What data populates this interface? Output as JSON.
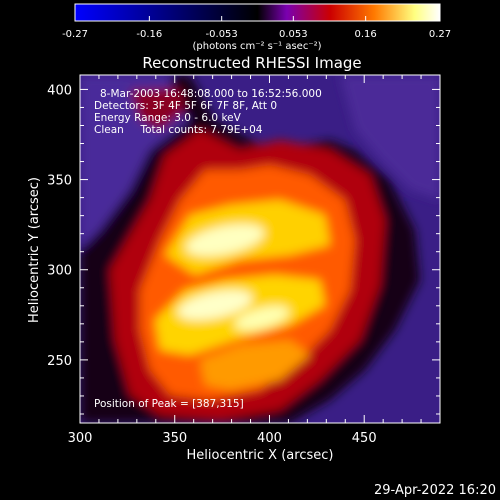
{
  "colorbar": {
    "ticks": [
      "-0.27",
      "-0.16",
      "-0.053",
      "0.053",
      "0.16",
      "0.27"
    ],
    "units_label": "(photons cm⁻² s⁻¹ asec⁻²)",
    "range": [
      -0.27,
      0.27
    ],
    "stops": [
      "#0000ff",
      "#000000",
      "#7a00b0",
      "#cc0000",
      "#ff7a00",
      "#ffff80",
      "#ffffff"
    ]
  },
  "chart_data": {
    "type": "heatmap",
    "title": "Reconstructed RHESSI Image",
    "xlabel": "Heliocentric X (arcsec)",
    "ylabel": "Heliocentric Y (arcsec)",
    "xlim": [
      300,
      490
    ],
    "ylim": [
      215,
      408
    ],
    "xticks": [
      300,
      350,
      400,
      450
    ],
    "yticks": [
      250,
      300,
      350,
      400
    ],
    "annotations": [
      "8-Mar-2003 16:48:08.000 to 16:52:56.000",
      "Detectors: 3F 4F 5F 6F 7F 8F, Att 0",
      "Energy Range: 3.0 - 6.0 keV",
      "Clean     Total counts: 7.79E+04"
    ],
    "peak_label": "Position of Peak = [387,315]",
    "peak": [
      387,
      315
    ]
  },
  "footer": {
    "timestamp": "29-Apr-2022 16:20"
  }
}
